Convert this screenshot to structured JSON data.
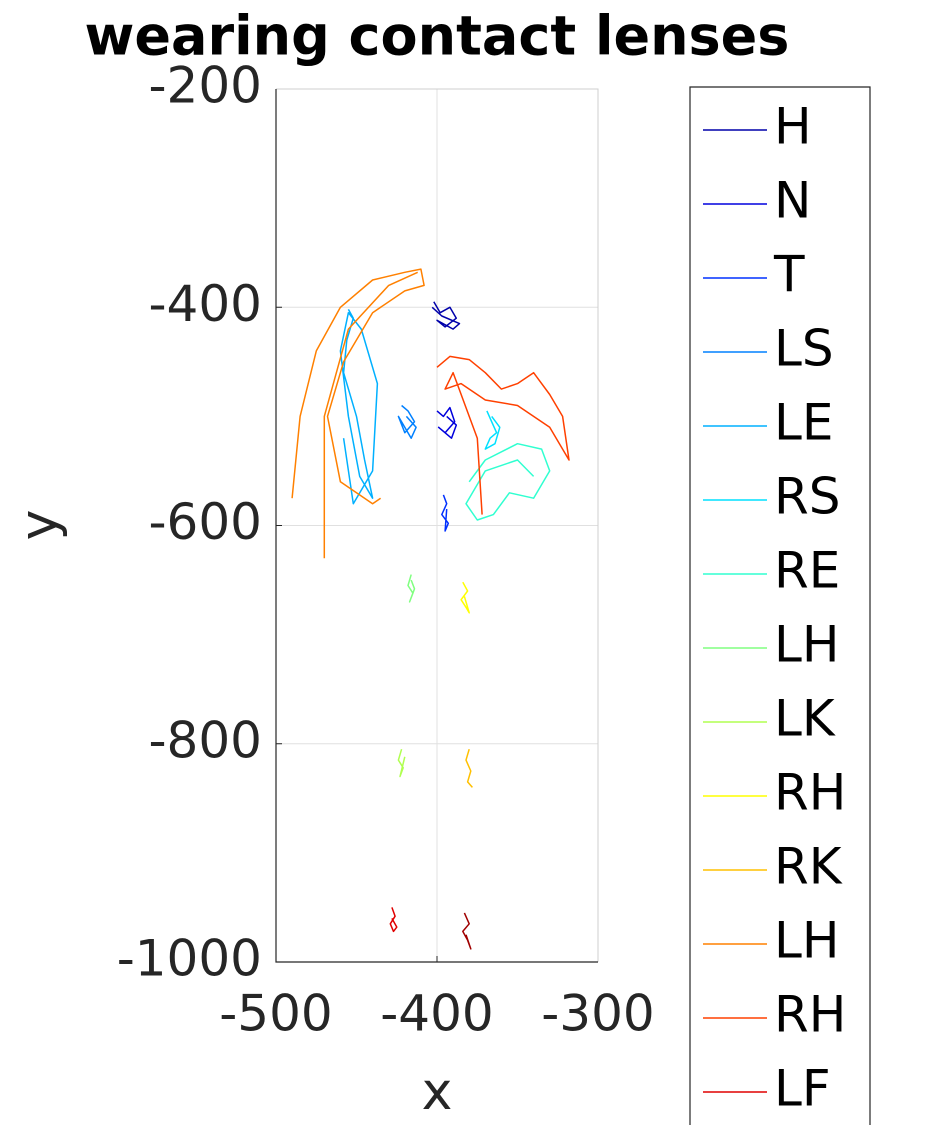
{
  "chart_data": {
    "type": "line",
    "title": "wearing contact lenses",
    "x_label": "x",
    "y_label": "y",
    "xlim": [
      -500,
      -300
    ],
    "xticks": [
      -500,
      -400,
      -300
    ],
    "ylim": [
      -1000,
      -200
    ],
    "yticks": [
      -1000,
      -800,
      -600,
      -400,
      -200
    ],
    "grid": true,
    "legend": "outside-right",
    "series": [
      {
        "name": "H",
        "color": "#0000aa",
        "x": [
          -402,
          -398,
          -392,
          -388,
          -395,
          -400,
          -390,
          -386,
          -397,
          -403
        ],
        "y": [
          -395,
          -405,
          -400,
          -410,
          -418,
          -412,
          -420,
          -415,
          -408,
          -400
        ]
      },
      {
        "name": "N",
        "color": "#0000dd",
        "x": [
          -400,
          -396,
          -392,
          -389,
          -395,
          -399,
          -391,
          -388,
          -394
        ],
        "y": [
          -495,
          -500,
          -492,
          -505,
          -515,
          -510,
          -520,
          -508,
          -500
        ]
      },
      {
        "name": "T",
        "color": "#0030ff",
        "x": [
          -396,
          -394,
          -397,
          -393,
          -395,
          -394
        ],
        "y": [
          -572,
          -580,
          -590,
          -598,
          -605,
          -585
        ]
      },
      {
        "name": "LS",
        "color": "#0080ff",
        "x": [
          -422,
          -418,
          -414,
          -420,
          -424,
          -416,
          -413,
          -419
        ],
        "y": [
          -490,
          -495,
          -505,
          -515,
          -500,
          -520,
          -510,
          -500
        ]
      },
      {
        "name": "LE",
        "color": "#00b0ff",
        "x": [
          -455,
          -452,
          -456,
          -458,
          -450,
          -445,
          -440,
          -448,
          -455,
          -460,
          -455,
          -447,
          -437,
          -440,
          -452,
          -458
        ],
        "y": [
          -402,
          -410,
          -430,
          -460,
          -500,
          -540,
          -575,
          -555,
          -500,
          -440,
          -405,
          -420,
          -470,
          -550,
          -580,
          -520
        ]
      },
      {
        "name": "RS",
        "color": "#00e0ff",
        "x": [
          -369,
          -366,
          -363,
          -367,
          -370,
          -364,
          -361,
          -366
        ],
        "y": [
          -495,
          -505,
          -515,
          -520,
          -530,
          -525,
          -510,
          -500
        ]
      },
      {
        "name": "RE",
        "color": "#30ffd0",
        "x": [
          -380,
          -370,
          -350,
          -335,
          -330,
          -340,
          -355,
          -365,
          -375,
          -382,
          -370,
          -350,
          -340
        ],
        "y": [
          -560,
          -540,
          -525,
          -530,
          -550,
          -575,
          -570,
          -590,
          -595,
          -580,
          -550,
          -540,
          -555
        ]
      },
      {
        "name": "LH",
        "color": "#80ff80",
        "x": [
          -416,
          -418,
          -415,
          -417,
          -414,
          -416
        ],
        "y": [
          -645,
          -655,
          -662,
          -670,
          -658,
          -650
        ]
      },
      {
        "name": "LK",
        "color": "#b0ff50",
        "x": [
          -422,
          -424,
          -421,
          -423,
          -420
        ],
        "y": [
          -805,
          -815,
          -822,
          -830,
          -812
        ]
      },
      {
        "name": "RH",
        "color": "#ffff00",
        "x": [
          -384,
          -381,
          -385,
          -382,
          -380,
          -383
        ],
        "y": [
          -652,
          -660,
          -668,
          -675,
          -680,
          -665
        ]
      },
      {
        "name": "RK",
        "color": "#ffc000",
        "x": [
          -380,
          -382,
          -379,
          -381,
          -378
        ],
        "y": [
          -805,
          -815,
          -825,
          -835,
          -840
        ]
      },
      {
        "name": "LH",
        "color": "#ff8000",
        "x": [
          -490,
          -485,
          -475,
          -460,
          -440,
          -420,
          -410,
          -408,
          -420,
          -440,
          -458,
          -468,
          -460,
          -440,
          -435,
          null,
          -470,
          -470,
          -455,
          -430,
          -412
        ],
        "y": [
          -575,
          -500,
          -440,
          -400,
          -375,
          -368,
          -365,
          -380,
          -385,
          -405,
          -450,
          -500,
          -560,
          -580,
          -575,
          null,
          -630,
          -500,
          -420,
          -380,
          -368
        ]
      },
      {
        "name": "RH",
        "color": "#ff4000",
        "x": [
          -400,
          -392,
          -380,
          -370,
          -360,
          -350,
          -340,
          -330,
          -322,
          -318,
          -330,
          -350,
          -370,
          -385,
          -395,
          -390,
          -375,
          -372
        ],
        "y": [
          -455,
          -445,
          -448,
          -460,
          -475,
          -470,
          -460,
          -480,
          -500,
          -540,
          -510,
          -490,
          -485,
          -470,
          -475,
          -460,
          -520,
          -590
        ]
      },
      {
        "name": "LF",
        "color": "#e00000",
        "x": [
          -428,
          -426,
          -429,
          -427,
          -425,
          -428
        ],
        "y": [
          -950,
          -958,
          -965,
          -972,
          -968,
          -960
        ]
      },
      {
        "color": "#a00000",
        "x": [
          -383,
          -380,
          -384,
          -381,
          -379,
          -382
        ],
        "y": [
          -955,
          -965,
          -972,
          -980,
          -988,
          -975
        ]
      }
    ]
  }
}
